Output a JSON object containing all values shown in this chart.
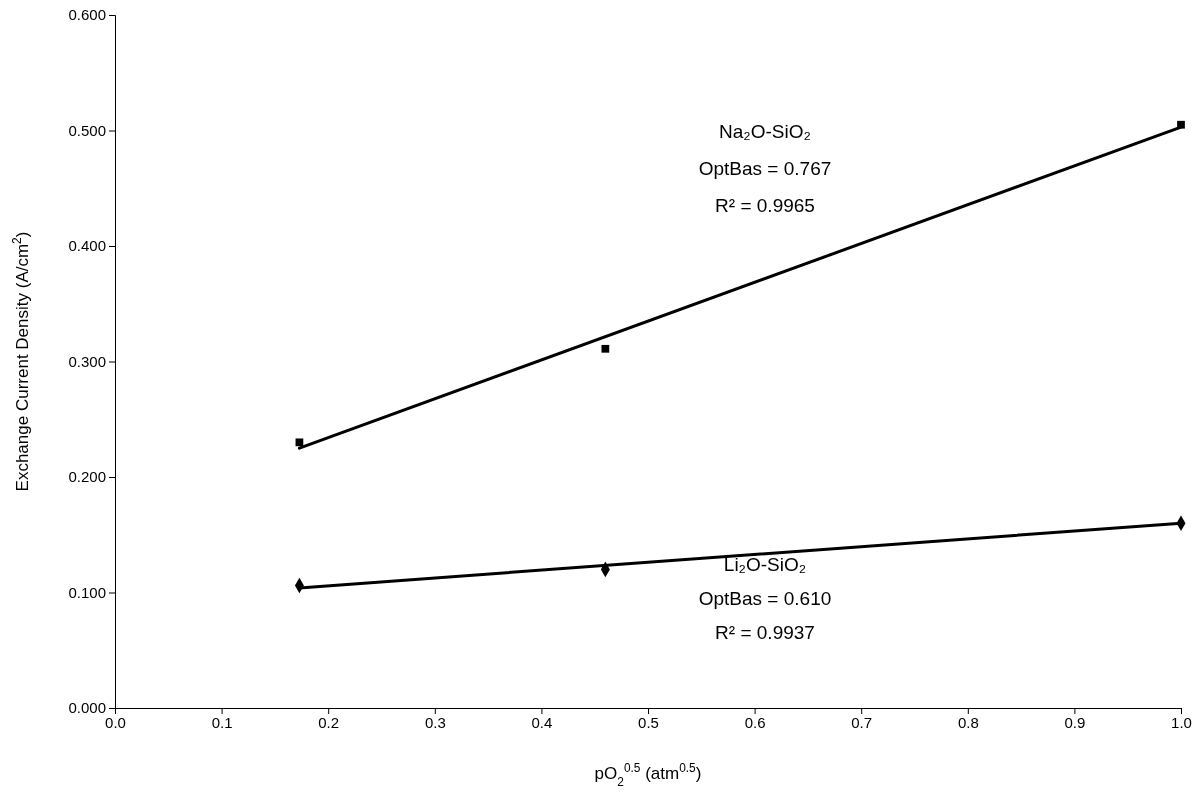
{
  "chart_data": {
    "type": "scatter",
    "xlabel": "pO$_{2}$$^{0.5}$ (atm$^{0.5}$)",
    "ylabel": "Exchange Current Density (A/cm$^{2}$)",
    "xlim": [
      0,
      1.0
    ],
    "ylim": [
      0,
      0.6
    ],
    "xticks": [
      {
        "value": 0,
        "label": "0.0"
      },
      {
        "value": 0.1,
        "label": "0.1"
      },
      {
        "value": 0.2,
        "label": "0.2"
      },
      {
        "value": 0.3,
        "label": "0.3"
      },
      {
        "value": 0.4,
        "label": "0.4"
      },
      {
        "value": 0.5,
        "label": "0.5"
      },
      {
        "value": 0.6,
        "label": "0.6"
      },
      {
        "value": 0.7,
        "label": "0.7"
      },
      {
        "value": 0.8,
        "label": "0.8"
      },
      {
        "value": 0.9,
        "label": "0.9"
      },
      {
        "value": 1.0,
        "label": "1.0"
      }
    ],
    "yticks": [
      {
        "value": 0,
        "label": "0.000"
      },
      {
        "value": 0.1,
        "label": "0.100"
      },
      {
        "value": 0.2,
        "label": "0.200"
      },
      {
        "value": 0.3,
        "label": "0.300"
      },
      {
        "value": 0.4,
        "label": "0.400"
      },
      {
        "value": 0.5,
        "label": "0.500"
      },
      {
        "value": 0.6,
        "label": "0.600"
      }
    ],
    "grid": false,
    "series": [
      {
        "marker": "square",
        "color": "#000000",
        "x": [
          0.173,
          0.46,
          1.0
        ],
        "values": [
          0.23,
          0.311,
          0.505
        ]
      },
      {
        "type": "line",
        "marker": "none",
        "color": "#000000",
        "x": [
          0.173,
          1.0
        ],
        "values": [
          0.225,
          0.503
        ]
      },
      {
        "marker": "diamond",
        "color": "#000000",
        "x": [
          0.173,
          0.46,
          1.0
        ],
        "values": [
          0.106,
          0.12,
          0.16
        ]
      },
      {
        "type": "line",
        "marker": "none",
        "color": "#000000",
        "x": [
          0.173,
          1.0
        ],
        "values": [
          0.104,
          0.16
        ]
      }
    ],
    "annotations": [
      "Na₂O-SiO₂",
      "OptBas = 0.767",
      "R² = 0.9965",
      "Li₂O-SiO₂",
      "OptBas = 0.610",
      "R² = 0.9937"
    ]
  }
}
